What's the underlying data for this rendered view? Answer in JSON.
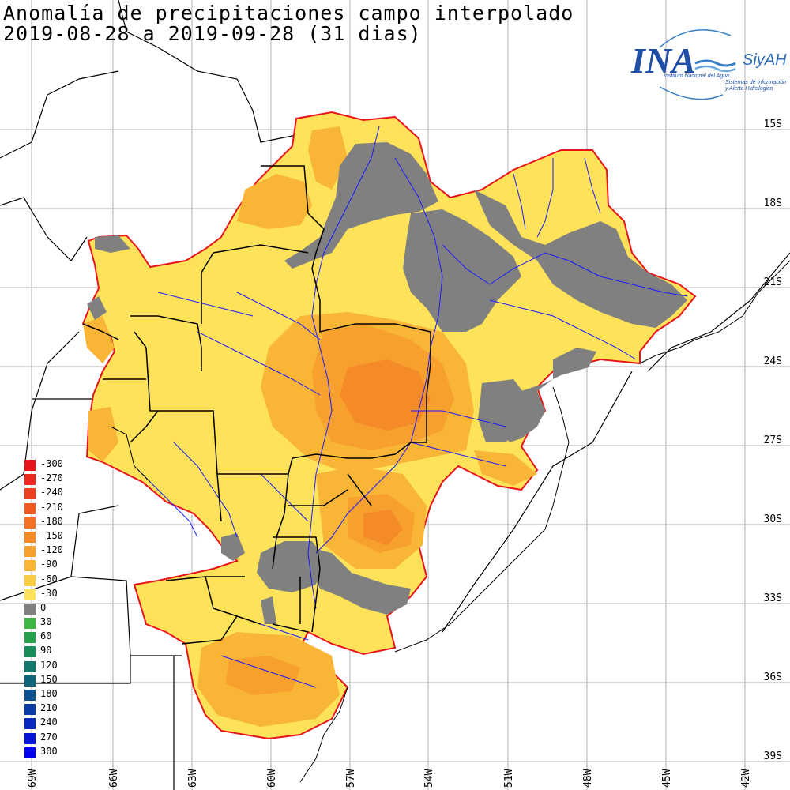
{
  "title": {
    "line1": "Anomalía de precipitaciones campo interpolado",
    "line2": "2019-08-28 a 2019-09-28 (31 dias)"
  },
  "logo": {
    "brand": "INA",
    "sub": "SiyAH",
    "line1": "Instituto Nacional del Agua",
    "line2": "Sistemas de Información",
    "line3": "y Alerta Hidrológico"
  },
  "lat_labels": [
    "15S",
    "18S",
    "21S",
    "24S",
    "27S",
    "30S",
    "33S",
    "36S",
    "39S"
  ],
  "lon_labels": [
    "69W",
    "66W",
    "63W",
    "60W",
    "57W",
    "54W",
    "51W",
    "48W",
    "45W",
    "42W"
  ],
  "legend": [
    {
      "label": "-300",
      "color": "#e8141c"
    },
    {
      "label": "-270",
      "color": "#ea2a1e"
    },
    {
      "label": "-240",
      "color": "#ee4020"
    },
    {
      "label": "-210",
      "color": "#f05a22"
    },
    {
      "label": "-180",
      "color": "#f37024"
    },
    {
      "label": "-150",
      "color": "#f58a28"
    },
    {
      "label": "-120",
      "color": "#f8a02e"
    },
    {
      "label": "-90",
      "color": "#f9b636"
    },
    {
      "label": "-60",
      "color": "#fbcb42"
    },
    {
      "label": "-30",
      "color": "#fde25a"
    },
    {
      "label": "0",
      "color": "#808080"
    },
    {
      "label": "30",
      "color": "#3fb544"
    },
    {
      "label": "60",
      "color": "#26a04a"
    },
    {
      "label": "90",
      "color": "#1a8c5a"
    },
    {
      "label": "120",
      "color": "#13786a"
    },
    {
      "label": "150",
      "color": "#10647a"
    },
    {
      "label": "180",
      "color": "#0e5090"
    },
    {
      "label": "210",
      "color": "#0a3ca8"
    },
    {
      "label": "240",
      "color": "#0828c0"
    },
    {
      "label": "270",
      "color": "#0516d8"
    },
    {
      "label": "300",
      "color": "#0202f0"
    }
  ],
  "colors": {
    "anomaly_light": "#fde25a",
    "anomaly_medium": "#f9b636",
    "anomaly_strong": "#f8a02e",
    "anomaly_strongest": "#f58a28",
    "neutral": "#808080",
    "basin_outline": "#e8141c",
    "rivers": "#1a1aff",
    "borders": "#000000",
    "grid": "#b0b0b0"
  }
}
